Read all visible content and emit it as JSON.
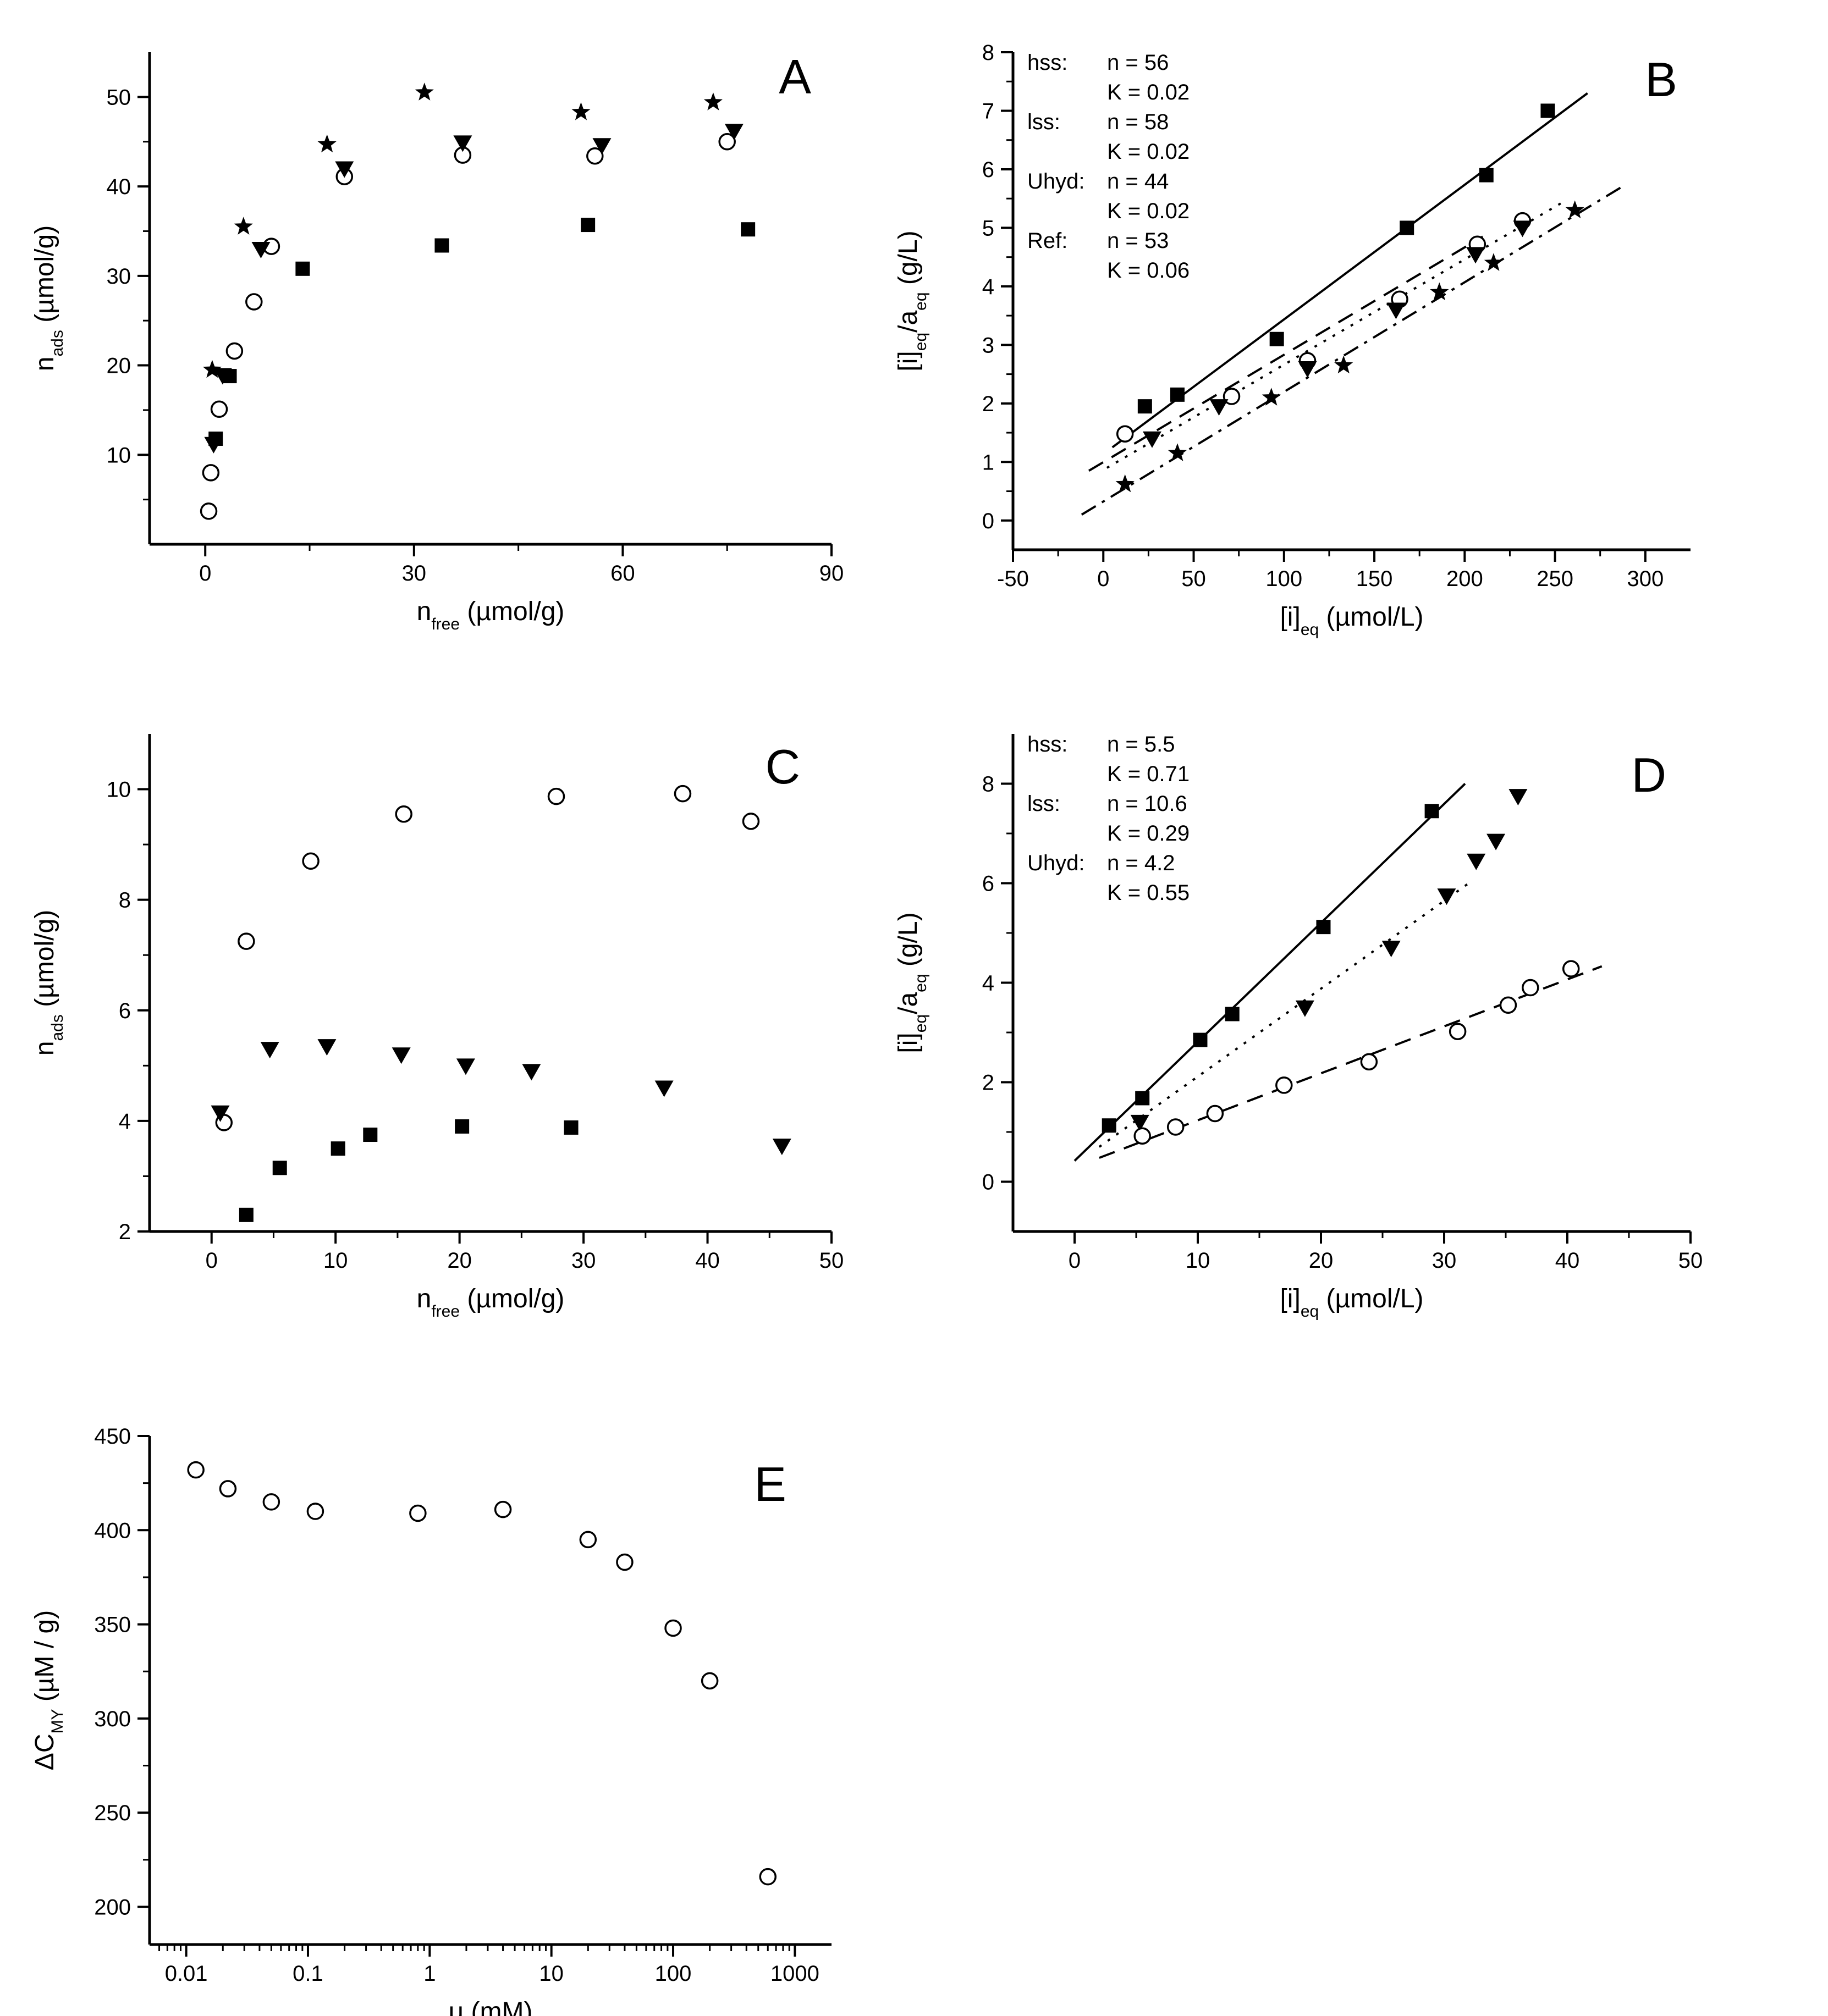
{
  "chart_data": [
    {
      "panel": "A",
      "type": "scatter",
      "xlabel": "n_free (µmol/g)",
      "ylabel": "n_ads (µmol/g)",
      "xlim": [
        -8,
        90
      ],
      "ylim": [
        0,
        55
      ],
      "xticks": [
        0,
        30,
        60,
        90
      ],
      "yticks": [
        10,
        20,
        30,
        40,
        50
      ],
      "series": [
        {
          "marker": "square",
          "points": [
            [
              1.5,
              11.8
            ],
            [
              3.5,
              18.8
            ],
            [
              14,
              30.8
            ],
            [
              34,
              33.4
            ],
            [
              55,
              35.7
            ],
            [
              78,
              35.2
            ]
          ]
        },
        {
          "marker": "circle",
          "points": [
            [
              0.5,
              3.7
            ],
            [
              0.8,
              8.0
            ],
            [
              2.0,
              15.1
            ],
            [
              4.2,
              21.6
            ],
            [
              7.0,
              27.1
            ],
            [
              9.5,
              33.3
            ],
            [
              20,
              41.1
            ],
            [
              37,
              43.5
            ],
            [
              56,
              43.4
            ],
            [
              75,
              45.0
            ]
          ]
        },
        {
          "marker": "triangle",
          "points": [
            [
              1.2,
              11.2
            ],
            [
              2.5,
              18.9
            ],
            [
              8.0,
              33.0
            ],
            [
              20,
              42.0
            ],
            [
              37,
              44.9
            ],
            [
              57,
              44.6
            ],
            [
              76,
              46.2
            ]
          ]
        },
        {
          "marker": "star",
          "points": [
            [
              1.0,
              19.5
            ],
            [
              5.5,
              35.5
            ],
            [
              17.5,
              44.7
            ],
            [
              31.5,
              50.5
            ],
            [
              54,
              48.3
            ],
            [
              73,
              49.4
            ]
          ]
        }
      ]
    },
    {
      "panel": "B",
      "type": "scatter",
      "xlabel": "[i]_eq (µmol/L)",
      "ylabel": "[i]_eq/a_eq (g/L)",
      "xlim": [
        -50,
        325
      ],
      "ylim": [
        -0.5,
        8
      ],
      "xticks": [
        -50,
        0,
        50,
        100,
        150,
        200,
        250,
        300
      ],
      "yticks": [
        0,
        1,
        2,
        3,
        4,
        5,
        6,
        7,
        8
      ],
      "annotations": [
        {
          "label": "hss:",
          "n": "n = 56",
          "K": "K = 0.02"
        },
        {
          "label": "lss:",
          "n": "n = 58",
          "K": "K = 0.02"
        },
        {
          "label": "Uhyd:",
          "n": "n = 44",
          "K": "K = 0.02"
        },
        {
          "label": "Ref:",
          "n": "n = 53",
          "K": "K = 0.06"
        }
      ],
      "series": [
        {
          "marker": "square",
          "line": "solid",
          "fit": [
            [
              5,
              1.25
            ],
            [
              268,
              7.3
            ]
          ],
          "points": [
            [
              23,
              1.95
            ],
            [
              41,
              2.15
            ],
            [
              96,
              3.1
            ],
            [
              168,
              5.0
            ],
            [
              212,
              5.9
            ],
            [
              246,
              7.0
            ]
          ]
        },
        {
          "marker": "circle",
          "line": "dashed",
          "fit": [
            [
              -8,
              0.85
            ],
            [
              210,
              4.85
            ]
          ],
          "points": [
            [
              12,
              1.48
            ],
            [
              71,
              2.12
            ],
            [
              113,
              2.73
            ],
            [
              164,
              3.78
            ],
            [
              207,
              4.72
            ],
            [
              232,
              5.12
            ]
          ]
        },
        {
          "marker": "triangle",
          "line": "dotted",
          "fit": [
            [
              2,
              0.9
            ],
            [
              255,
              5.45
            ]
          ],
          "points": [
            [
              27,
              1.4
            ],
            [
              64,
              1.95
            ],
            [
              113,
              2.6
            ],
            [
              162,
              3.6
            ],
            [
              206,
              4.55
            ],
            [
              232,
              5.0
            ]
          ]
        },
        {
          "marker": "star",
          "line": "dashdot",
          "fit": [
            [
              -12,
              0.1
            ],
            [
              287,
              5.7
            ]
          ],
          "points": [
            [
              12,
              0.62
            ],
            [
              41,
              1.15
            ],
            [
              93,
              2.1
            ],
            [
              133,
              2.65
            ],
            [
              186,
              3.9
            ],
            [
              216,
              4.4
            ],
            [
              261,
              5.3
            ]
          ]
        }
      ]
    },
    {
      "panel": "C",
      "type": "scatter",
      "xlabel": "n_free (µmol/g)",
      "ylabel": "n_ads (µmol/g)",
      "xlim": [
        -5,
        50
      ],
      "ylim": [
        2,
        11
      ],
      "xticks": [
        0,
        10,
        20,
        30,
        40,
        50
      ],
      "yticks": [
        2,
        4,
        6,
        8,
        10
      ],
      "series": [
        {
          "marker": "square",
          "points": [
            [
              2.8,
              2.3
            ],
            [
              5.5,
              3.15
            ],
            [
              10.2,
              3.5
            ],
            [
              12.8,
              3.75
            ],
            [
              20.2,
              3.9
            ],
            [
              29,
              3.88
            ]
          ]
        },
        {
          "marker": "circle",
          "points": [
            [
              1.0,
              3.97
            ],
            [
              2.8,
              7.25
            ],
            [
              8.0,
              8.7
            ],
            [
              15.5,
              9.55
            ],
            [
              27.8,
              9.87
            ],
            [
              38,
              9.92
            ],
            [
              43.5,
              9.42
            ]
          ]
        },
        {
          "marker": "triangle",
          "points": [
            [
              0.7,
              4.15
            ],
            [
              4.7,
              5.3
            ],
            [
              9.3,
              5.35
            ],
            [
              15.3,
              5.2
            ],
            [
              20.5,
              5.0
            ],
            [
              25.8,
              4.9
            ],
            [
              36.5,
              4.6
            ],
            [
              46,
              3.55
            ]
          ]
        }
      ]
    },
    {
      "panel": "D",
      "type": "scatter",
      "xlabel": "[i]_eq (µmol/L)",
      "ylabel": "[i]_eq/a_eq (g/L)",
      "xlim": [
        -5,
        50
      ],
      "ylim": [
        -1,
        9
      ],
      "xticks": [
        0,
        10,
        20,
        30,
        40,
        50
      ],
      "yticks": [
        0,
        2,
        4,
        6,
        8
      ],
      "annotations": [
        {
          "label": "hss:",
          "n": "n = 5.5",
          "K": "K = 0.71"
        },
        {
          "label": "lss:",
          "n": "n = 10.6",
          "K": "K = 0.29"
        },
        {
          "label": "Uhyd:",
          "n": "n = 4.2",
          "K": "K = 0.55"
        }
      ],
      "series": [
        {
          "marker": "square",
          "line": "solid",
          "fit": [
            [
              0,
              0.42
            ],
            [
              31.7,
              8.0
            ]
          ],
          "points": [
            [
              2.8,
              1.13
            ],
            [
              5.5,
              1.68
            ],
            [
              10.2,
              2.85
            ],
            [
              12.8,
              3.37
            ],
            [
              20.2,
              5.12
            ],
            [
              29,
              7.45
            ]
          ]
        },
        {
          "marker": "triangle",
          "line": "dotted",
          "fit": [
            [
              2,
              0.7
            ],
            [
              32,
              6.0
            ]
          ],
          "points": [
            [
              5.3,
              1.2
            ],
            [
              18.7,
              3.5
            ],
            [
              25.7,
              4.7
            ],
            [
              30.2,
              5.75
            ],
            [
              32.6,
              6.45
            ],
            [
              34.2,
              6.85
            ],
            [
              36,
              7.75
            ]
          ]
        },
        {
          "marker": "circle",
          "line": "dashed",
          "fit": [
            [
              2,
              0.48
            ],
            [
              42.8,
              4.33
            ]
          ],
          "points": [
            [
              5.5,
              0.92
            ],
            [
              8.2,
              1.1
            ],
            [
              11.4,
              1.37
            ],
            [
              17,
              1.94
            ],
            [
              23.9,
              2.41
            ],
            [
              31.1,
              3.02
            ],
            [
              35.2,
              3.55
            ],
            [
              37,
              3.9
            ],
            [
              40.3,
              4.28
            ]
          ]
        }
      ]
    },
    {
      "panel": "E",
      "type": "scatter",
      "xscale": "log",
      "xlabel": "μ (mM)",
      "ylabel": "ΔC_MY (µM / g)",
      "xlim": [
        0.005,
        2000
      ],
      "ylim": [
        180,
        450
      ],
      "xtick_labels": [
        "0.01",
        "0.1",
        "1",
        "10",
        "100",
        "1000"
      ],
      "yticks": [
        200,
        250,
        300,
        350,
        400,
        450
      ],
      "series": [
        {
          "marker": "circle",
          "points": [
            [
              0.012,
              432
            ],
            [
              0.022,
              422
            ],
            [
              0.05,
              415
            ],
            [
              0.115,
              410
            ],
            [
              0.8,
              409
            ],
            [
              4,
              411
            ],
            [
              20,
              395
            ],
            [
              40,
              383
            ],
            [
              100,
              348
            ],
            [
              200,
              320
            ],
            [
              600,
              216
            ]
          ]
        }
      ]
    }
  ]
}
